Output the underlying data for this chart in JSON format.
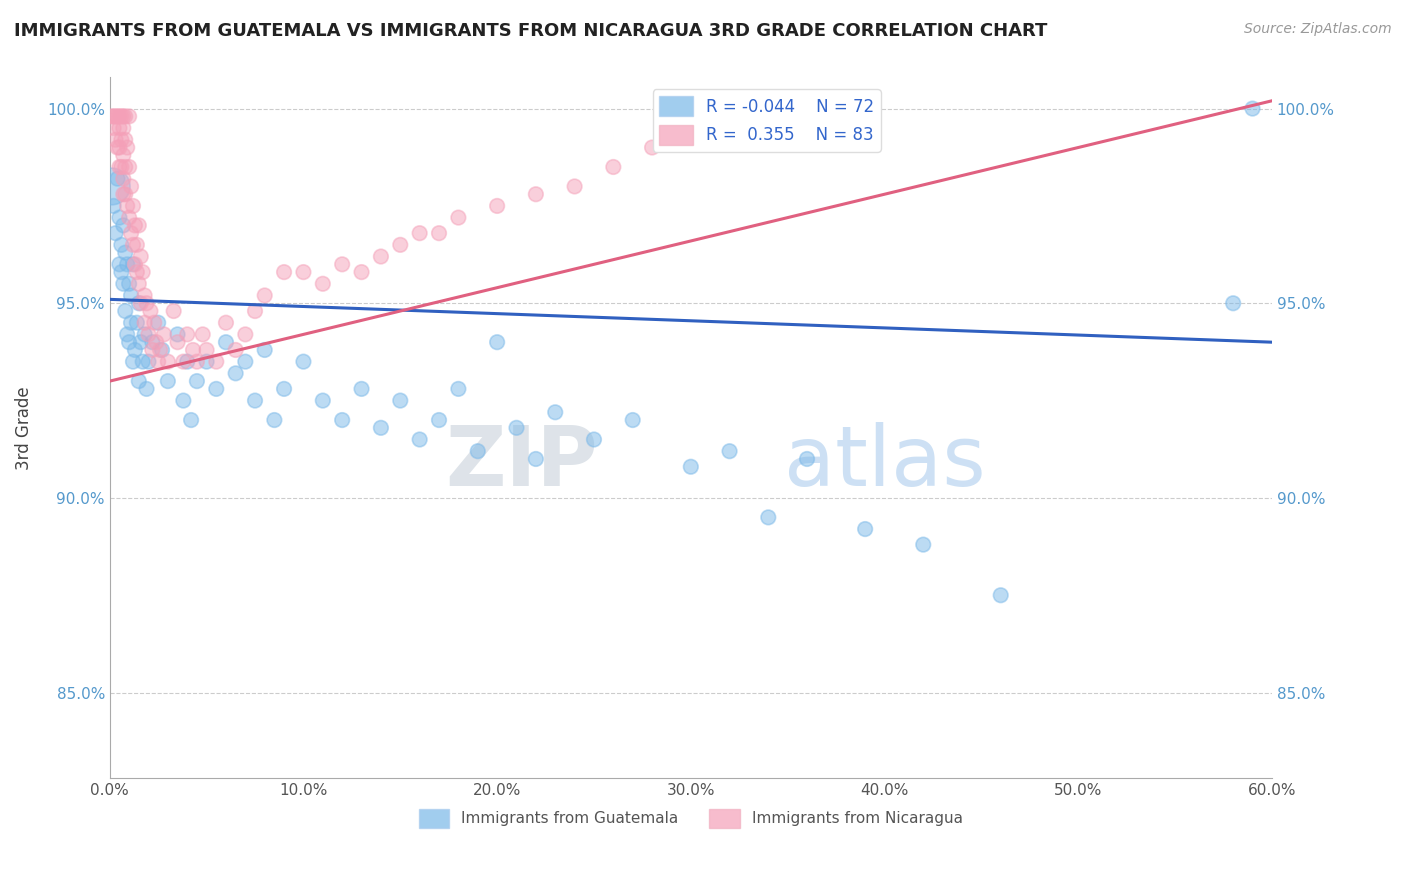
{
  "title": "IMMIGRANTS FROM GUATEMALA VS IMMIGRANTS FROM NICARAGUA 3RD GRADE CORRELATION CHART",
  "source": "Source: ZipAtlas.com",
  "ylabel": "3rd Grade",
  "xlim": [
    0.0,
    0.6
  ],
  "ylim": [
    0.828,
    1.008
  ],
  "xticks": [
    0.0,
    0.1,
    0.2,
    0.3,
    0.4,
    0.5,
    0.6
  ],
  "xticklabels": [
    "0.0%",
    "10.0%",
    "20.0%",
    "30.0%",
    "40.0%",
    "50.0%",
    "60.0%"
  ],
  "yticks": [
    0.85,
    0.9,
    0.95,
    1.0
  ],
  "yticklabels": [
    "85.0%",
    "90.0%",
    "95.0%",
    "100.0%"
  ],
  "blue_color": "#7ab8e8",
  "pink_color": "#f4a0b8",
  "blue_line_color": "#3060c0",
  "pink_line_color": "#e06080",
  "blue_R": -0.044,
  "blue_N": 72,
  "pink_R": 0.355,
  "pink_N": 83,
  "watermark_zip": "ZIP",
  "watermark_atlas": "atlas",
  "legend_label_blue": "Immigrants from Guatemala",
  "legend_label_pink": "Immigrants from Nicaragua",
  "blue_trend_x0": 0.0,
  "blue_trend_y0": 0.951,
  "blue_trend_x1": 0.6,
  "blue_trend_y1": 0.94,
  "pink_trend_x0": 0.0,
  "pink_trend_y0": 0.93,
  "pink_trend_x1": 0.6,
  "pink_trend_y1": 1.002,
  "blue_x": [
    0.001,
    0.002,
    0.003,
    0.004,
    0.005,
    0.005,
    0.006,
    0.006,
    0.007,
    0.007,
    0.008,
    0.008,
    0.009,
    0.009,
    0.01,
    0.01,
    0.011,
    0.011,
    0.012,
    0.012,
    0.013,
    0.014,
    0.015,
    0.015,
    0.016,
    0.017,
    0.018,
    0.019,
    0.02,
    0.022,
    0.025,
    0.027,
    0.03,
    0.035,
    0.038,
    0.04,
    0.042,
    0.045,
    0.05,
    0.055,
    0.06,
    0.065,
    0.07,
    0.075,
    0.08,
    0.085,
    0.09,
    0.1,
    0.11,
    0.12,
    0.13,
    0.14,
    0.15,
    0.16,
    0.17,
    0.18,
    0.19,
    0.2,
    0.21,
    0.22,
    0.23,
    0.25,
    0.27,
    0.3,
    0.32,
    0.34,
    0.36,
    0.39,
    0.42,
    0.46,
    0.58,
    0.59
  ],
  "blue_y": [
    0.98,
    0.975,
    0.968,
    0.982,
    0.972,
    0.96,
    0.965,
    0.958,
    0.955,
    0.97,
    0.963,
    0.948,
    0.96,
    0.942,
    0.955,
    0.94,
    0.952,
    0.945,
    0.96,
    0.935,
    0.938,
    0.945,
    0.95,
    0.93,
    0.94,
    0.935,
    0.942,
    0.928,
    0.935,
    0.94,
    0.945,
    0.938,
    0.93,
    0.942,
    0.925,
    0.935,
    0.92,
    0.93,
    0.935,
    0.928,
    0.94,
    0.932,
    0.935,
    0.925,
    0.938,
    0.92,
    0.928,
    0.935,
    0.925,
    0.92,
    0.928,
    0.918,
    0.925,
    0.915,
    0.92,
    0.928,
    0.912,
    0.94,
    0.918,
    0.91,
    0.922,
    0.915,
    0.92,
    0.908,
    0.912,
    0.895,
    0.91,
    0.892,
    0.888,
    0.875,
    0.95,
    1.0
  ],
  "pink_x": [
    0.001,
    0.002,
    0.002,
    0.003,
    0.003,
    0.004,
    0.004,
    0.005,
    0.005,
    0.005,
    0.005,
    0.006,
    0.006,
    0.006,
    0.007,
    0.007,
    0.007,
    0.007,
    0.007,
    0.008,
    0.008,
    0.008,
    0.008,
    0.009,
    0.009,
    0.01,
    0.01,
    0.01,
    0.011,
    0.011,
    0.012,
    0.012,
    0.013,
    0.013,
    0.014,
    0.014,
    0.015,
    0.015,
    0.016,
    0.016,
    0.017,
    0.018,
    0.018,
    0.019,
    0.02,
    0.021,
    0.022,
    0.023,
    0.024,
    0.025,
    0.026,
    0.028,
    0.03,
    0.033,
    0.035,
    0.038,
    0.04,
    0.043,
    0.045,
    0.048,
    0.05,
    0.055,
    0.06,
    0.065,
    0.07,
    0.075,
    0.08,
    0.09,
    0.1,
    0.11,
    0.12,
    0.13,
    0.14,
    0.15,
    0.16,
    0.17,
    0.18,
    0.2,
    0.22,
    0.24,
    0.26,
    0.28,
    0.32
  ],
  "pink_y": [
    0.998,
    0.995,
    0.998,
    0.992,
    0.998,
    0.99,
    0.998,
    0.998,
    0.995,
    0.99,
    0.985,
    0.998,
    0.992,
    0.985,
    0.998,
    0.995,
    0.988,
    0.982,
    0.978,
    0.998,
    0.992,
    0.985,
    0.978,
    0.99,
    0.975,
    0.998,
    0.985,
    0.972,
    0.98,
    0.968,
    0.975,
    0.965,
    0.97,
    0.96,
    0.965,
    0.958,
    0.97,
    0.955,
    0.962,
    0.95,
    0.958,
    0.952,
    0.945,
    0.95,
    0.942,
    0.948,
    0.938,
    0.945,
    0.94,
    0.935,
    0.938,
    0.942,
    0.935,
    0.948,
    0.94,
    0.935,
    0.942,
    0.938,
    0.935,
    0.942,
    0.938,
    0.935,
    0.945,
    0.938,
    0.942,
    0.948,
    0.952,
    0.958,
    0.958,
    0.955,
    0.96,
    0.958,
    0.962,
    0.965,
    0.968,
    0.968,
    0.972,
    0.975,
    0.978,
    0.98,
    0.985,
    0.99,
    1.0
  ]
}
